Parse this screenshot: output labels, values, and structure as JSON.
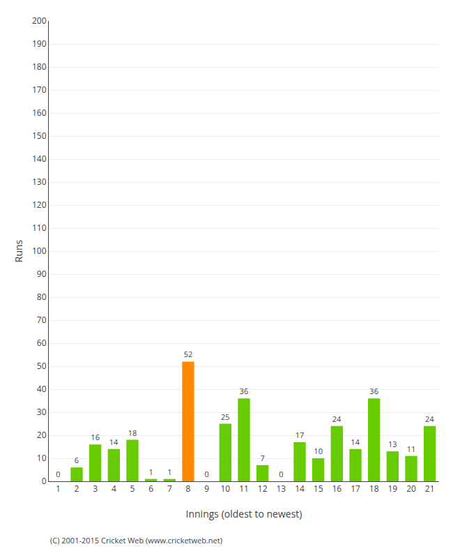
{
  "chart_data": {
    "type": "bar",
    "xlabel": "Innings (oldest to newest)",
    "ylabel": "Runs",
    "footer": "(C) 2001-2015 Cricket Web (www.cricketweb.net)",
    "categories": [
      1,
      2,
      3,
      4,
      5,
      6,
      7,
      8,
      9,
      10,
      11,
      12,
      13,
      14,
      15,
      16,
      17,
      18,
      19,
      20,
      21
    ],
    "values": [
      0,
      6,
      16,
      14,
      18,
      1,
      1,
      52,
      0,
      25,
      36,
      7,
      0,
      17,
      10,
      24,
      14,
      36,
      13,
      11,
      24
    ],
    "colors": [
      "#66cc00",
      "#66cc00",
      "#66cc00",
      "#66cc00",
      "#66cc00",
      "#66cc00",
      "#66cc00",
      "#ff8800",
      "#66cc00",
      "#66cc00",
      "#66cc00",
      "#66cc00",
      "#66cc00",
      "#66cc00",
      "#66cc00",
      "#66cc00",
      "#66cc00",
      "#66cc00",
      "#66cc00",
      "#66cc00",
      "#66cc00"
    ],
    "ylim": [
      0,
      200
    ],
    "yticks": [
      0,
      10,
      20,
      30,
      40,
      50,
      60,
      70,
      80,
      90,
      100,
      110,
      120,
      130,
      140,
      150,
      160,
      170,
      180,
      190,
      200
    ],
    "grid": true,
    "data_labels": true
  }
}
